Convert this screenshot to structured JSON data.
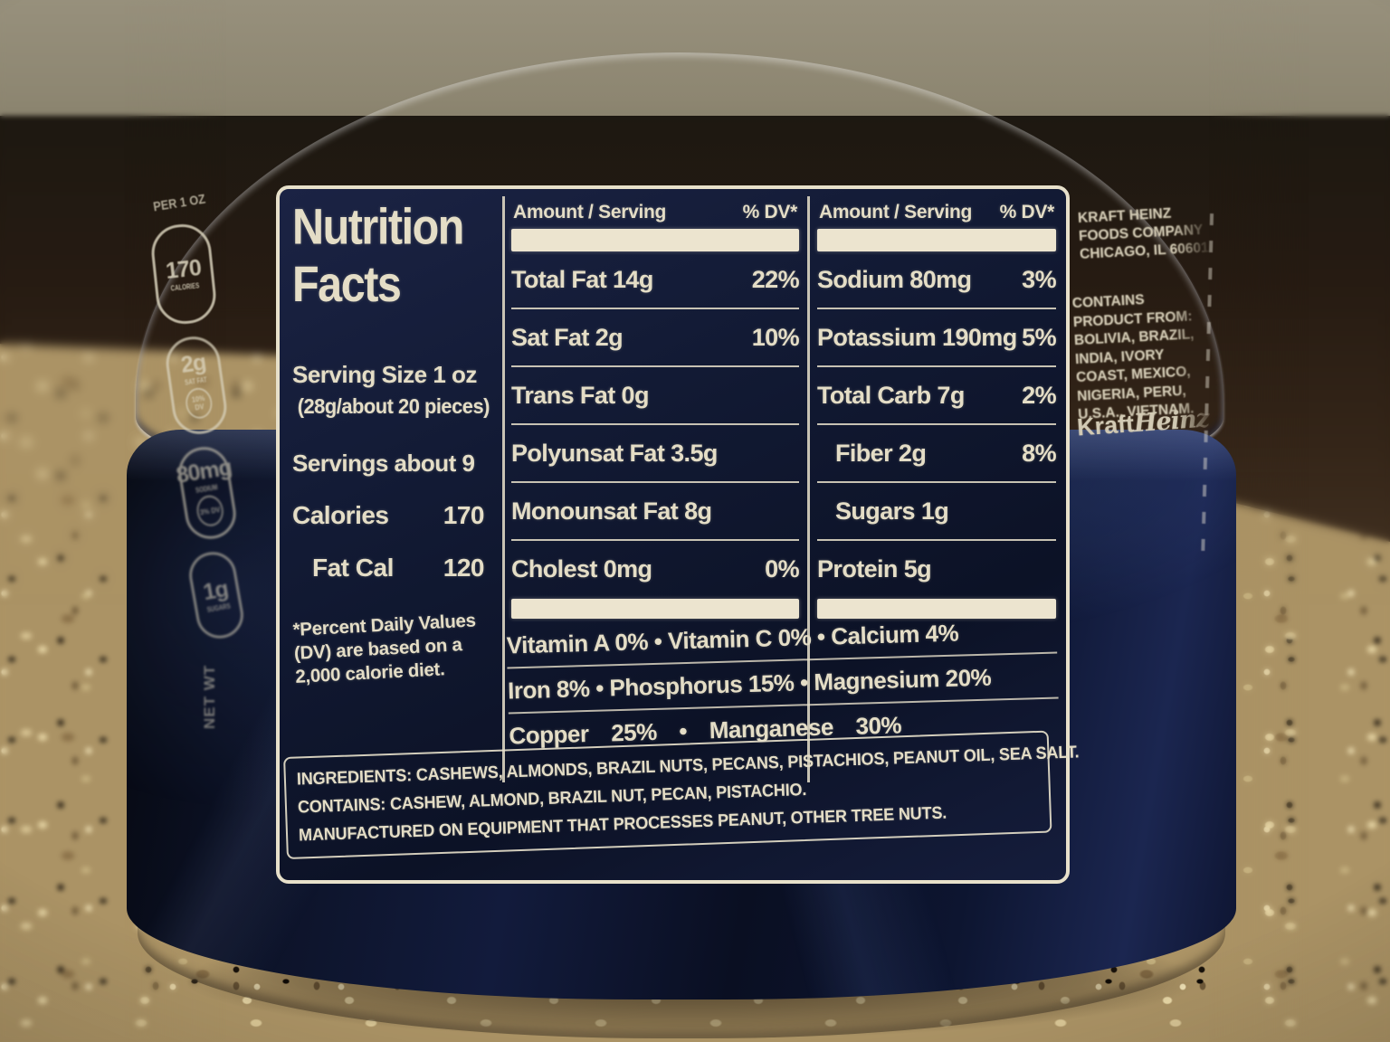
{
  "can": {
    "per_serving_note": "PER 1 OZ",
    "front_badges": [
      {
        "value": "170",
        "label": "CALORIES",
        "dv": ""
      },
      {
        "value": "2g",
        "label": "SAT FAT",
        "dv": "10% DV"
      },
      {
        "value": "80mg",
        "label": "SODIUM",
        "dv": "3% DV"
      },
      {
        "value": "1g",
        "label": "SUGARS",
        "dv": ""
      }
    ],
    "net_wt": "NET WT"
  },
  "label": {
    "title_line1": "Nutrition",
    "title_line2": "Facts",
    "serving_size": "Serving Size 1 oz",
    "serving_detail": "(28g/about 20 pieces)",
    "servings": "Servings about 9",
    "calories_label": "Calories",
    "calories_value": "170",
    "fat_cal_label": "Fat Cal",
    "fat_cal_value": "120",
    "footnote": "*Percent Daily Values (DV) are based on a 2,000 calorie diet.",
    "amount_header": "Amount / Serving",
    "dv_header": "% DV*",
    "col2_rows": [
      {
        "name": "Total Fat 14g",
        "dv": "22%"
      },
      {
        "name": "Sat Fat 2g",
        "dv": "10%"
      },
      {
        "name": "Trans Fat 0g",
        "dv": ""
      },
      {
        "name": "Polyunsat Fat 3.5g",
        "dv": ""
      },
      {
        "name": "Monounsat Fat 8g",
        "dv": ""
      },
      {
        "name": "Cholest 0mg",
        "dv": "0%"
      }
    ],
    "col3_rows": [
      {
        "name": "Sodium 80mg",
        "dv": "3%"
      },
      {
        "name": "Potassium 190mg",
        "dv": "5%"
      },
      {
        "name": "Total Carb 7g",
        "dv": "2%"
      },
      {
        "name": "Fiber 2g",
        "dv": "8%"
      },
      {
        "name": "Sugars 1g",
        "dv": ""
      },
      {
        "name": "Protein 5g",
        "dv": ""
      }
    ],
    "micros": [
      "Vitamin A 0% • Vitamin C 0% • Calcium 4%",
      "Iron 8% • Phosphorus 15% • Magnesium 20%",
      "Copper 25% • Manganese 30%"
    ],
    "ingredients": "INGREDIENTS: CASHEWS, ALMONDS, BRAZIL NUTS, PECANS, PISTACHIOS, PEANUT OIL, SEA SALT.",
    "contains": "CONTAINS: CASHEW, ALMOND, BRAZIL NUT, PECAN, PISTACHIO.",
    "manufactured": "MANUFACTURED ON EQUIPMENT THAT PROCESSES PEANUT, OTHER TREE NUTS."
  },
  "side_panel": {
    "company": "KRAFT HEINZ FOODS COMPANY",
    "city": "CHICAGO, IL 60601",
    "origin": "CONTAINS PRODUCT FROM: BOLIVIA, BRAZIL, INDIA, IVORY COAST, MEXICO, NIGERIA, PERU, U.S.A., VIETNAM.",
    "brand_kraft": "Kraft",
    "brand_heinz": "Heinz"
  }
}
